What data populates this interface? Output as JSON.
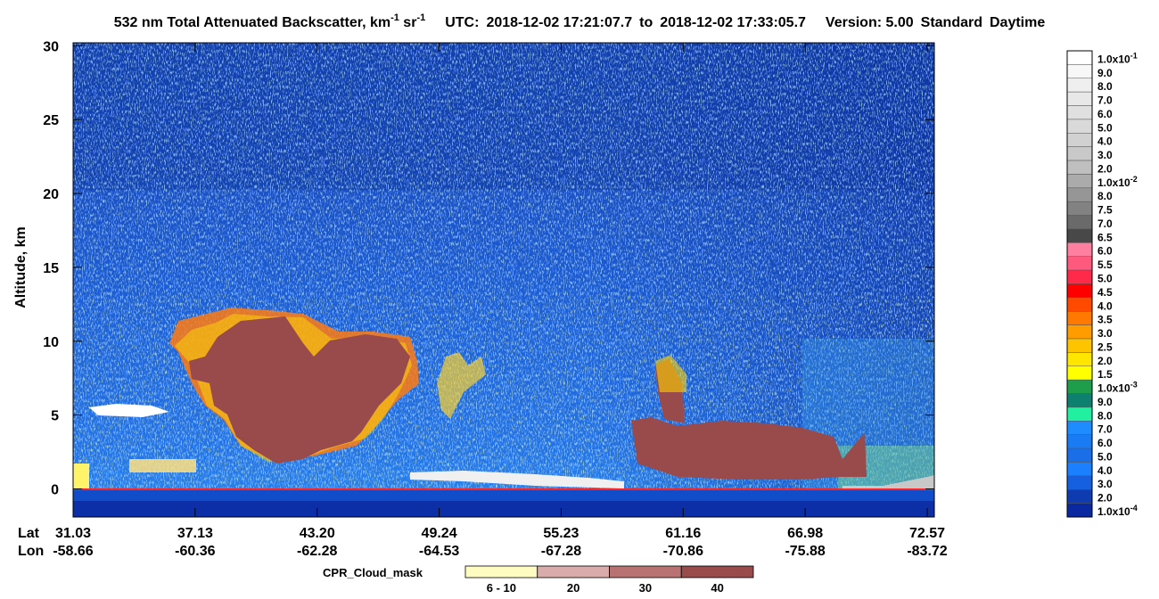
{
  "chart_data": {
    "type": "curtain",
    "title": {
      "prefix": "532 nm Total Attenuated Backscatter, km",
      "exp1": "-1",
      "mid": " sr",
      "exp2": "-1",
      "utc": "UTC:",
      "start": "2018-12-02 17:21:07.7",
      "to": "to",
      "end": "2018-12-02 17:33:05.7",
      "version": "Version: 5.00",
      "mode": "Standard",
      "daytime": "Daytime"
    },
    "y_label": "Altitude, km",
    "ylim": [
      -1.9,
      30.2
    ],
    "yticks": [
      0,
      5,
      10,
      15,
      20,
      25,
      30
    ],
    "lat_title": "Lat",
    "lon_title": "Lon",
    "lat_labels": [
      "31.03",
      "37.13",
      "43.20",
      "49.24",
      "55.23",
      "61.16",
      "66.98",
      "72.57"
    ],
    "lon_labels": [
      "-58.66",
      "-60.36",
      "-62.28",
      "-64.53",
      "-67.28",
      "-70.86",
      "-75.88",
      "-83.72"
    ],
    "colorbar": [
      {
        "label": "1.0x10",
        "exp": "-1",
        "color": "#ffffff"
      },
      {
        "label": "9.0",
        "color": "#f7f7f7"
      },
      {
        "label": "8.0",
        "color": "#efefef"
      },
      {
        "label": "7.0",
        "color": "#e8e8e8"
      },
      {
        "label": "6.0",
        "color": "#e0e0e0"
      },
      {
        "label": "5.0",
        "color": "#d9d9d9"
      },
      {
        "label": "4.0",
        "color": "#d1d1d1"
      },
      {
        "label": "3.0",
        "color": "#c9c9c9"
      },
      {
        "label": "2.0",
        "color": "#bfbfbf"
      },
      {
        "label": "1.0x10",
        "exp": "-2",
        "color": "#ababab"
      },
      {
        "label": "8.0",
        "color": "#969696"
      },
      {
        "label": "7.5",
        "color": "#828282"
      },
      {
        "label": "7.0",
        "color": "#6a6a6a"
      },
      {
        "label": "6.5",
        "color": "#484848"
      },
      {
        "label": "6.0",
        "color": "#ff7fa0"
      },
      {
        "label": "5.5",
        "color": "#ff5a7d"
      },
      {
        "label": "5.0",
        "color": "#ff2a4a"
      },
      {
        "label": "4.5",
        "color": "#ff0000"
      },
      {
        "label": "4.0",
        "color": "#ff4a00"
      },
      {
        "label": "3.5",
        "color": "#ff7800"
      },
      {
        "label": "3.0",
        "color": "#ff9c00"
      },
      {
        "label": "2.5",
        "color": "#ffc400"
      },
      {
        "label": "2.0",
        "color": "#ffe600"
      },
      {
        "label": "1.5",
        "color": "#ffff00"
      },
      {
        "label": "1.0x10",
        "exp": "-3",
        "color": "#1e9e4a"
      },
      {
        "label": "9.0",
        "color": "#0e8070"
      },
      {
        "label": "8.0",
        "color": "#20f0a0"
      },
      {
        "label": "7.0",
        "color": "#1e8cff"
      },
      {
        "label": "6.0",
        "color": "#1a7cf4"
      },
      {
        "label": "5.0",
        "color": "#1a6ee8"
      },
      {
        "label": "4.0",
        "color": "#1a80ff"
      },
      {
        "label": "3.0",
        "color": "#1460e0"
      },
      {
        "label": "2.0",
        "color": "#0e3cb0"
      },
      {
        "label": "1.0x10",
        "exp": "-4",
        "color": "#0a28a0"
      }
    ],
    "cpr_title": "CPR_Cloud_mask",
    "cpr_legend": [
      {
        "label": "6 - 10",
        "color": "#fffcc2"
      },
      {
        "label": "20",
        "color": "#d9abab"
      },
      {
        "label": "30",
        "color": "#b87272"
      },
      {
        "label": "40",
        "color": "#994a4a"
      }
    ]
  }
}
